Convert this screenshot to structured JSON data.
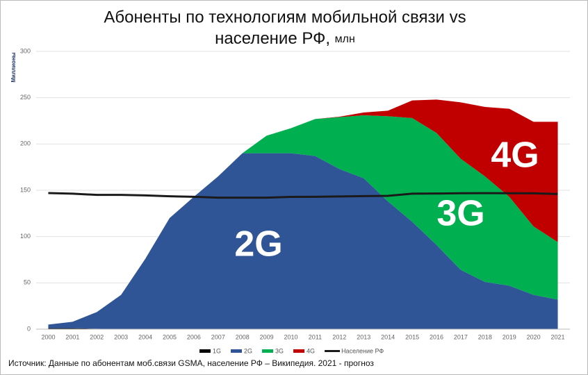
{
  "chart_data": {
    "type": "stacked-area",
    "title_line1": "Абоненты по технологиям мобильной связи vs",
    "title_line2": "население РФ,",
    "title_unit": "млн",
    "ylabel": "Миллионы",
    "source": "Источник: Данные по абонентам моб.связи GSMA, население РФ – Википедия. 2021 - прогноз",
    "x": [
      2000,
      2001,
      2002,
      2003,
      2004,
      2005,
      2006,
      2007,
      2008,
      2009,
      2010,
      2011,
      2012,
      2013,
      2014,
      2015,
      2016,
      2017,
      2018,
      2019,
      2020,
      2021
    ],
    "ylim": [
      0,
      300
    ],
    "yticks": [
      0,
      50,
      100,
      150,
      200,
      250,
      300
    ],
    "grid": true,
    "series": [
      {
        "name": "1G",
        "color": "#000000",
        "values": [
          1,
          1,
          0.5,
          0,
          0,
          0,
          0,
          0,
          0,
          0,
          0,
          0,
          0,
          0,
          0,
          0,
          0,
          0,
          0,
          0,
          0,
          0
        ]
      },
      {
        "name": "2G",
        "color": "#2f5597",
        "values": [
          4,
          7,
          18,
          37,
          76,
          120,
          143,
          165,
          190,
          190,
          190,
          187,
          173,
          163,
          138,
          116,
          91,
          64,
          51,
          47,
          37,
          32
        ]
      },
      {
        "name": "3G",
        "color": "#00b050",
        "values": [
          0,
          0,
          0,
          0,
          0,
          0,
          0,
          0,
          0,
          19,
          27,
          40,
          56,
          68,
          92,
          112,
          121,
          120,
          114,
          96,
          74,
          62
        ]
      },
      {
        "name": "4G",
        "color": "#c00000",
        "values": [
          0,
          0,
          0,
          0,
          0,
          0,
          0,
          0,
          0,
          0,
          0,
          0,
          0.5,
          3,
          6,
          19,
          36,
          61,
          75,
          95,
          113,
          130
        ]
      },
      {
        "name": "Население РФ",
        "type": "line",
        "color": "#1a1a1a",
        "values": [
          147,
          146.3,
          145,
          145,
          144.5,
          143.5,
          143,
          142,
          142,
          142,
          142.9,
          143,
          143.3,
          143.7,
          144,
          146.3,
          146.5,
          146.8,
          146.9,
          146.8,
          146.7,
          146
        ]
      }
    ]
  }
}
